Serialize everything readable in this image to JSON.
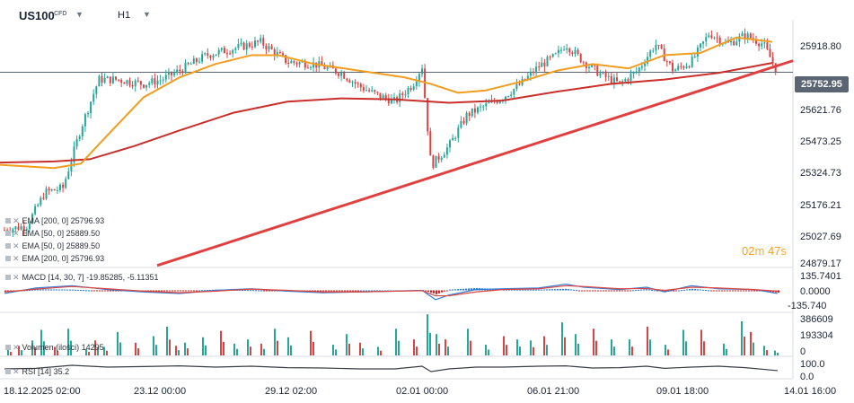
{
  "header": {
    "symbol": "US100",
    "instrument_type": "CFD",
    "timeframe": "H1",
    "caret_icon": "chevron-down-icon"
  },
  "legend": [
    {
      "text": "EMA [200,  0]  25796.93"
    },
    {
      "text": "EMA [50,  0]  25889.50"
    },
    {
      "text": "EMA [50,  0]  25889.50"
    },
    {
      "text": "EMA [200,  0]  25796.93"
    }
  ],
  "current_price": "25752.95",
  "countdown": {
    "minutes": "02",
    "m_unit": "m",
    "seconds": "47",
    "s_unit": "s"
  },
  "colors": {
    "bull": "#26a69a",
    "bear": "#d84343",
    "ema50": "#f29d1e",
    "ema200": "#c9302c",
    "trendline": "#e04040",
    "price_badge": "#5a6472",
    "macd_line": "#2f7dd6",
    "signal_line": "#e0443c",
    "rsi_line": "#3a3f47"
  },
  "chart_data": [
    {
      "type": "candlestick",
      "timeframe": "H1",
      "y_ticks": [
        "25918.80",
        "25621.76",
        "25473.25",
        "25324.73",
        "25176.21",
        "25027.69",
        "24879.17"
      ],
      "ylim": [
        24879.17,
        25990
      ],
      "x_ticks": [
        "18.12.2025  02:00",
        "23.12  00:00",
        "29.12  02:00",
        "02.01  00:00",
        "06.01  21:00",
        "09.01  18:00",
        "14.01  16:00"
      ],
      "series": [
        {
          "name": "EMA [200,  0]",
          "last": 25796.93
        },
        {
          "name": "EMA [50,  0]",
          "last": 25889.5
        }
      ],
      "ema50_path": [
        [
          0,
          25335
        ],
        [
          60,
          25320
        ],
        [
          90,
          25340
        ],
        [
          120,
          25470
        ],
        [
          160,
          25640
        ],
        [
          200,
          25730
        ],
        [
          240,
          25790
        ],
        [
          280,
          25830
        ],
        [
          310,
          25830
        ],
        [
          350,
          25790
        ],
        [
          400,
          25760
        ],
        [
          450,
          25730
        ],
        [
          480,
          25700
        ],
        [
          510,
          25660
        ],
        [
          540,
          25670
        ],
        [
          580,
          25710
        ],
        [
          620,
          25760
        ],
        [
          660,
          25790
        ],
        [
          700,
          25770
        ],
        [
          740,
          25830
        ],
        [
          780,
          25840
        ],
        [
          820,
          25910
        ],
        [
          860,
          25890
        ]
      ],
      "ema200_path": [
        [
          0,
          25345
        ],
        [
          60,
          25350
        ],
        [
          100,
          25360
        ],
        [
          150,
          25420
        ],
        [
          200,
          25490
        ],
        [
          260,
          25570
        ],
        [
          320,
          25620
        ],
        [
          380,
          25635
        ],
        [
          440,
          25630
        ],
        [
          500,
          25615
        ],
        [
          560,
          25625
        ],
        [
          620,
          25665
        ],
        [
          680,
          25700
        ],
        [
          740,
          25720
        ],
        [
          800,
          25750
        ],
        [
          860,
          25795
        ]
      ],
      "candles_x_range": [
        5,
        866
      ],
      "close_path": [
        [
          5,
          25040
        ],
        [
          30,
          25060
        ],
        [
          50,
          25210
        ],
        [
          70,
          25230
        ],
        [
          90,
          25500
        ],
        [
          110,
          25720
        ],
        [
          130,
          25720
        ],
        [
          160,
          25700
        ],
        [
          180,
          25720
        ],
        [
          200,
          25760
        ],
        [
          230,
          25830
        ],
        [
          260,
          25860
        ],
        [
          290,
          25890
        ],
        [
          320,
          25800
        ],
        [
          350,
          25790
        ],
        [
          380,
          25750
        ],
        [
          400,
          25690
        ],
        [
          420,
          25650
        ],
        [
          440,
          25620
        ],
        [
          460,
          25700
        ],
        [
          470,
          25780
        ],
        [
          480,
          25330
        ],
        [
          500,
          25420
        ],
        [
          520,
          25560
        ],
        [
          540,
          25600
        ],
        [
          560,
          25640
        ],
        [
          580,
          25700
        ],
        [
          600,
          25780
        ],
        [
          620,
          25830
        ],
        [
          630,
          25880
        ],
        [
          650,
          25800
        ],
        [
          670,
          25740
        ],
        [
          690,
          25700
        ],
        [
          710,
          25760
        ],
        [
          730,
          25880
        ],
        [
          750,
          25760
        ],
        [
          770,
          25800
        ],
        [
          790,
          25930
        ],
        [
          810,
          25880
        ],
        [
          830,
          25920
        ],
        [
          850,
          25880
        ],
        [
          866,
          25752.95
        ]
      ],
      "trendline": {
        "from": [
          175,
          24880
        ],
        "to": [
          883,
          25805
        ]
      }
    },
    {
      "type": "bar",
      "name": "MACD [14, 30, 7]",
      "label": "MACD [14, 30, 7]",
      "macd": -19.85285,
      "signal": -5.11351,
      "macd_text": "-19.85285,",
      "signal_text": "-5.11351",
      "y_ticks": [
        "135.7401",
        "0.0000",
        "-135.740"
      ],
      "ylim": [
        -135.74,
        135.74
      ],
      "macd_path": [
        [
          5,
          -20
        ],
        [
          40,
          15
        ],
        [
          80,
          30
        ],
        [
          120,
          5
        ],
        [
          160,
          -10
        ],
        [
          200,
          -20
        ],
        [
          240,
          0
        ],
        [
          280,
          10
        ],
        [
          320,
          -5
        ],
        [
          360,
          -15
        ],
        [
          400,
          -10
        ],
        [
          440,
          -5
        ],
        [
          470,
          0
        ],
        [
          485,
          -60
        ],
        [
          500,
          -30
        ],
        [
          530,
          5
        ],
        [
          560,
          10
        ],
        [
          600,
          15
        ],
        [
          630,
          40
        ],
        [
          650,
          20
        ],
        [
          690,
          5
        ],
        [
          720,
          20
        ],
        [
          740,
          -10
        ],
        [
          770,
          30
        ],
        [
          800,
          10
        ],
        [
          840,
          5
        ],
        [
          866,
          -19.85
        ]
      ],
      "signal_path": [
        [
          5,
          -10
        ],
        [
          40,
          8
        ],
        [
          80,
          25
        ],
        [
          120,
          10
        ],
        [
          160,
          -5
        ],
        [
          200,
          -15
        ],
        [
          240,
          -5
        ],
        [
          280,
          8
        ],
        [
          320,
          0
        ],
        [
          360,
          -10
        ],
        [
          400,
          -10
        ],
        [
          440,
          -5
        ],
        [
          470,
          -2
        ],
        [
          485,
          -35
        ],
        [
          500,
          -35
        ],
        [
          530,
          -10
        ],
        [
          560,
          5
        ],
        [
          600,
          10
        ],
        [
          630,
          30
        ],
        [
          650,
          25
        ],
        [
          690,
          10
        ],
        [
          720,
          12
        ],
        [
          740,
          0
        ],
        [
          770,
          20
        ],
        [
          800,
          15
        ],
        [
          840,
          5
        ],
        [
          866,
          -5.11
        ]
      ]
    },
    {
      "type": "bar",
      "name": "Volumen (ilości)",
      "label": "Volumen (ilości)",
      "value_text": "14295",
      "y_ticks": [
        "386609",
        "193304",
        "0"
      ],
      "ylim": [
        0,
        386609
      ],
      "bar_values": [
        [
          8,
          60000
        ],
        [
          20,
          90000
        ],
        [
          35,
          140000
        ],
        [
          45,
          240000
        ],
        [
          60,
          80000
        ],
        [
          75,
          250000
        ],
        [
          95,
          60000
        ],
        [
          105,
          140000
        ],
        [
          115,
          80000
        ],
        [
          130,
          220000
        ],
        [
          150,
          120000
        ],
        [
          170,
          180000
        ],
        [
          185,
          270000
        ],
        [
          195,
          90000
        ],
        [
          205,
          120000
        ],
        [
          225,
          170000
        ],
        [
          245,
          230000
        ],
        [
          260,
          110000
        ],
        [
          275,
          150000
        ],
        [
          290,
          110000
        ],
        [
          305,
          250000
        ],
        [
          320,
          170000
        ],
        [
          345,
          230000
        ],
        [
          370,
          100000
        ],
        [
          385,
          200000
        ],
        [
          400,
          120000
        ],
        [
          420,
          80000
        ],
        [
          440,
          250000
        ],
        [
          460,
          150000
        ],
        [
          475,
          385000
        ],
        [
          485,
          200000
        ],
        [
          495,
          150000
        ],
        [
          520,
          250000
        ],
        [
          540,
          100000
        ],
        [
          560,
          180000
        ],
        [
          575,
          150000
        ],
        [
          590,
          140000
        ],
        [
          605,
          180000
        ],
        [
          625,
          310000
        ],
        [
          640,
          200000
        ],
        [
          660,
          250000
        ],
        [
          680,
          150000
        ],
        [
          700,
          150000
        ],
        [
          720,
          270000
        ],
        [
          740,
          100000
        ],
        [
          760,
          240000
        ],
        [
          780,
          240000
        ],
        [
          805,
          110000
        ],
        [
          825,
          320000
        ],
        [
          835,
          220000
        ],
        [
          850,
          90000
        ],
        [
          862,
          45000
        ]
      ]
    },
    {
      "type": "line",
      "name": "RSI [14]",
      "label": "RSI [14]",
      "value_text": "35.2",
      "y_ticks": [
        "100.0",
        "0.0"
      ],
      "ylim": [
        0,
        100
      ],
      "rsi_path": [
        [
          5,
          45
        ],
        [
          40,
          48
        ],
        [
          80,
          65
        ],
        [
          120,
          55
        ],
        [
          160,
          58
        ],
        [
          200,
          62
        ],
        [
          240,
          55
        ],
        [
          280,
          60
        ],
        [
          320,
          52
        ],
        [
          360,
          50
        ],
        [
          400,
          45
        ],
        [
          440,
          45
        ],
        [
          470,
          60
        ],
        [
          480,
          30
        ],
        [
          500,
          45
        ],
        [
          530,
          55
        ],
        [
          560,
          55
        ],
        [
          600,
          60
        ],
        [
          630,
          62
        ],
        [
          660,
          50
        ],
        [
          690,
          52
        ],
        [
          720,
          60
        ],
        [
          740,
          48
        ],
        [
          770,
          55
        ],
        [
          800,
          60
        ],
        [
          830,
          52
        ],
        [
          866,
          35.2
        ]
      ]
    }
  ]
}
